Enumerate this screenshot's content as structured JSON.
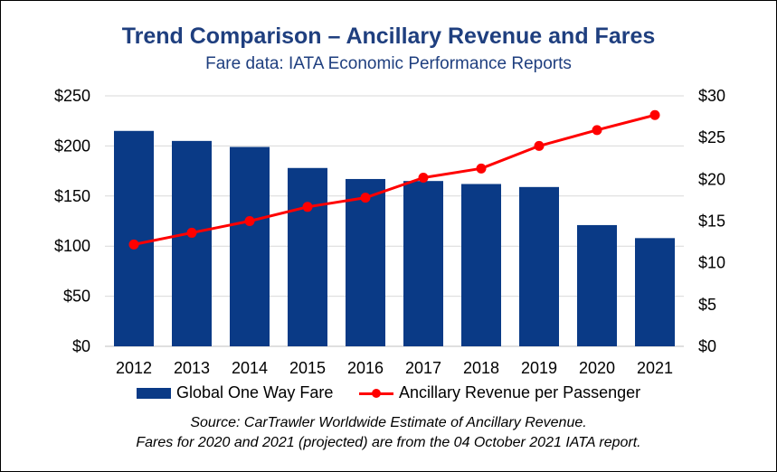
{
  "title": "Trend Comparison  – Ancillary Revenue and Fares",
  "subtitle": "Fare data:  IATA Economic Performance Reports",
  "colors": {
    "bar": "#0A3A86",
    "line": "#FF0000",
    "title": "#1F3F7F",
    "grid": "#D9D9D9"
  },
  "legend": {
    "bar_label": "Global One Way Fare",
    "line_label": "Ancillary Revenue per Passenger"
  },
  "source_line1": "Source:  CarTrawler Worldwide Estimate of Ancillary Revenue.",
  "source_line2": "Fares for 2020 and 2021 (projected) are from the 04 October 2021 IATA report.",
  "chart_data": {
    "type": "bar+line",
    "categories": [
      "2012",
      "2013",
      "2014",
      "2015",
      "2016",
      "2017",
      "2018",
      "2019",
      "2020",
      "2021"
    ],
    "series": [
      {
        "name": "Global One Way Fare",
        "type": "bar",
        "axis": "left",
        "values": [
          215,
          205,
          199,
          178,
          167,
          165,
          162,
          159,
          121,
          108
        ]
      },
      {
        "name": "Ancillary Revenue per Passenger",
        "type": "line",
        "axis": "right",
        "values": [
          12.2,
          13.6,
          15.0,
          16.7,
          17.8,
          20.2,
          21.3,
          24.0,
          25.9,
          27.7
        ]
      }
    ],
    "y_left": {
      "min": 0,
      "max": 250,
      "step": 50,
      "tick_labels": [
        "$0",
        "$50",
        "$100",
        "$150",
        "$200",
        "$250"
      ]
    },
    "y_right": {
      "min": 0,
      "max": 30,
      "step": 5,
      "tick_labels": [
        "$0",
        "$5",
        "$10",
        "$15",
        "$20",
        "$25",
        "$30"
      ]
    },
    "grid": true,
    "legend_position": "bottom"
  }
}
